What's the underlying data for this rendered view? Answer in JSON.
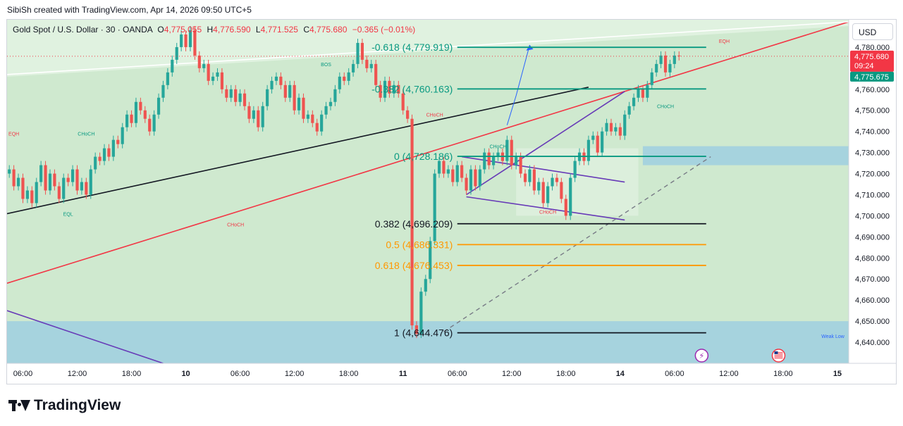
{
  "header": {
    "credit": "SibiSh created with TradingView.com, Apr 14, 2026 09:50 UTC+5"
  },
  "legend": {
    "symbol": "Gold Spot / U.S. Dollar · 30 · OANDA",
    "o_label": "O",
    "o_value": "4,775.055",
    "h_label": "H",
    "h_value": "4,776.590",
    "l_label": "L",
    "l_value": "4,771.525",
    "c_label": "C",
    "c_value": "4,775.680",
    "change": "−0.365 (−0.01%)"
  },
  "currency": "USD",
  "branding": {
    "name": "TradingView"
  },
  "colors": {
    "bg_green": "#cfe9cf",
    "bull": "#26a69a",
    "bear": "#ef5350",
    "fib_teal": "#089981",
    "fib_orange": "#ff9800",
    "trend_red": "#f23645",
    "channel_purple": "#673ab7",
    "zone_blue": "#9fcfe0"
  },
  "chart_data": {
    "type": "candlestick",
    "y_range": [
      4630,
      4793
    ],
    "y_ticks": [
      "4,780.000",
      "4,770.000",
      "4,760.000",
      "4,750.000",
      "4,740.000",
      "4,730.000",
      "4,720.000",
      "4,710.000",
      "4,700.000",
      "4,690.000",
      "4,680.000",
      "4,670.000",
      "4,660.000",
      "4,650.000",
      "4,640.000"
    ],
    "y_tick_values": [
      4780,
      4770,
      4760,
      4750,
      4740,
      4730,
      4720,
      4710,
      4700,
      4690,
      4680,
      4670,
      4660,
      4650,
      4640
    ],
    "x_ticks": [
      {
        "label": "06:00",
        "bar": 3
      },
      {
        "label": "12:00",
        "bar": 15
      },
      {
        "label": "18:00",
        "bar": 27
      },
      {
        "label": "10",
        "bar": 39
      },
      {
        "label": "06:00",
        "bar": 51
      },
      {
        "label": "12:00",
        "bar": 63
      },
      {
        "label": "18:00",
        "bar": 75
      },
      {
        "label": "11",
        "bar": 87
      },
      {
        "label": "06:00",
        "bar": 99
      },
      {
        "label": "12:00",
        "bar": 111
      },
      {
        "label": "18:00",
        "bar": 123
      },
      {
        "label": "14",
        "bar": 135
      },
      {
        "label": "06:00",
        "bar": 147
      },
      {
        "label": "12:00",
        "bar": 159
      },
      {
        "label": "18:00",
        "bar": 171
      },
      {
        "label": "15",
        "bar": 183
      }
    ],
    "bar_count_axis": 186,
    "last_price_label": "4,775.680",
    "countdown_label": "09:24",
    "bid_label": "4,775.675",
    "last_price": 4775.68,
    "bid_price": 4775.675,
    "closes": [
      4722,
      4714,
      4718,
      4708,
      4712,
      4706,
      4716,
      4724,
      4712,
      4720,
      4714,
      4708,
      4718,
      4716,
      4722,
      4712,
      4716,
      4710,
      4722,
      4728,
      4726,
      4732,
      4728,
      4736,
      4734,
      4742,
      4748,
      4744,
      4754,
      4750,
      4746,
      4740,
      4748,
      4756,
      4762,
      4768,
      4774,
      4780,
      4786,
      4780,
      4788,
      4776,
      4770,
      4772,
      4764,
      4766,
      4768,
      4760,
      4756,
      4760,
      4754,
      4758,
      4752,
      4746,
      4750,
      4742,
      4752,
      4760,
      4764,
      4766,
      4762,
      4756,
      4762,
      4750,
      4756,
      4746,
      4748,
      4744,
      4740,
      4748,
      4752,
      4754,
      4760,
      4766,
      4764,
      4768,
      4772,
      4782,
      4774,
      4770,
      4772,
      4762,
      4756,
      4764,
      4758,
      4762,
      4758,
      4750,
      4746,
      4648,
      4644,
      4664,
      4670,
      4688,
      4720,
      4726,
      4720,
      4722,
      4716,
      4724,
      4718,
      4712,
      4722,
      4714,
      4722,
      4730,
      4724,
      4728,
      4730,
      4726,
      4736,
      4724,
      4728,
      4720,
      4716,
      4722,
      4712,
      4716,
      4706,
      4714,
      4718,
      4716,
      4708,
      4700,
      4718,
      4726,
      4730,
      4726,
      4736,
      4738,
      4730,
      4740,
      4744,
      4740,
      4742,
      4738,
      4748,
      4752,
      4756,
      4760,
      4756,
      4762,
      4768,
      4772,
      4776,
      4768,
      4772,
      4776,
      4775.68
    ],
    "fib_levels": [
      {
        "label": "-0.618 (4,779.919)",
        "value": 4779.919,
        "color": "#089981"
      },
      {
        "label": "-0.382 (4,760.163)",
        "value": 4760.163,
        "color": "#089981"
      },
      {
        "label": "0 (4,728.186)",
        "value": 4728.186,
        "color": "#089981"
      },
      {
        "label": "0.382 (4,696.209)",
        "value": 4696.209,
        "color": "#131722"
      },
      {
        "label": "0.5 (4,686.331)",
        "value": 4686.331,
        "color": "#ff9800"
      },
      {
        "label": "0.618 (4,676.453)",
        "value": 4676.453,
        "color": "#ff9800"
      },
      {
        "label": "1 (4,644.476)",
        "value": 4644.476,
        "color": "#131722"
      }
    ],
    "annotations": [
      {
        "text": "EQH",
        "bar": 1,
        "price": 4738,
        "color": "#f23645"
      },
      {
        "text": "CHoCH",
        "bar": 17,
        "price": 4738,
        "color": "#089981"
      },
      {
        "text": "EQL",
        "bar": 13,
        "price": 4700,
        "color": "#089981"
      },
      {
        "text": "CHoCH",
        "bar": 50,
        "price": 4695,
        "color": "#f23645"
      },
      {
        "text": "BOS",
        "bar": 70,
        "price": 4771,
        "color": "#089981"
      },
      {
        "text": "CHoCH",
        "bar": 94,
        "price": 4747,
        "color": "#f23645"
      },
      {
        "text": "CHoCH",
        "bar": 108,
        "price": 4732,
        "color": "#089981"
      },
      {
        "text": "CHoCH",
        "bar": 119,
        "price": 4701,
        "color": "#f23645"
      },
      {
        "text": "CHoCH",
        "bar": 145,
        "price": 4751,
        "color": "#089981"
      },
      {
        "text": "EQH",
        "bar": 158,
        "price": 4782,
        "color": "#f23645"
      },
      {
        "text": "Weak Low",
        "bar": 182,
        "price": 4642,
        "color": "#2962ff"
      }
    ]
  }
}
